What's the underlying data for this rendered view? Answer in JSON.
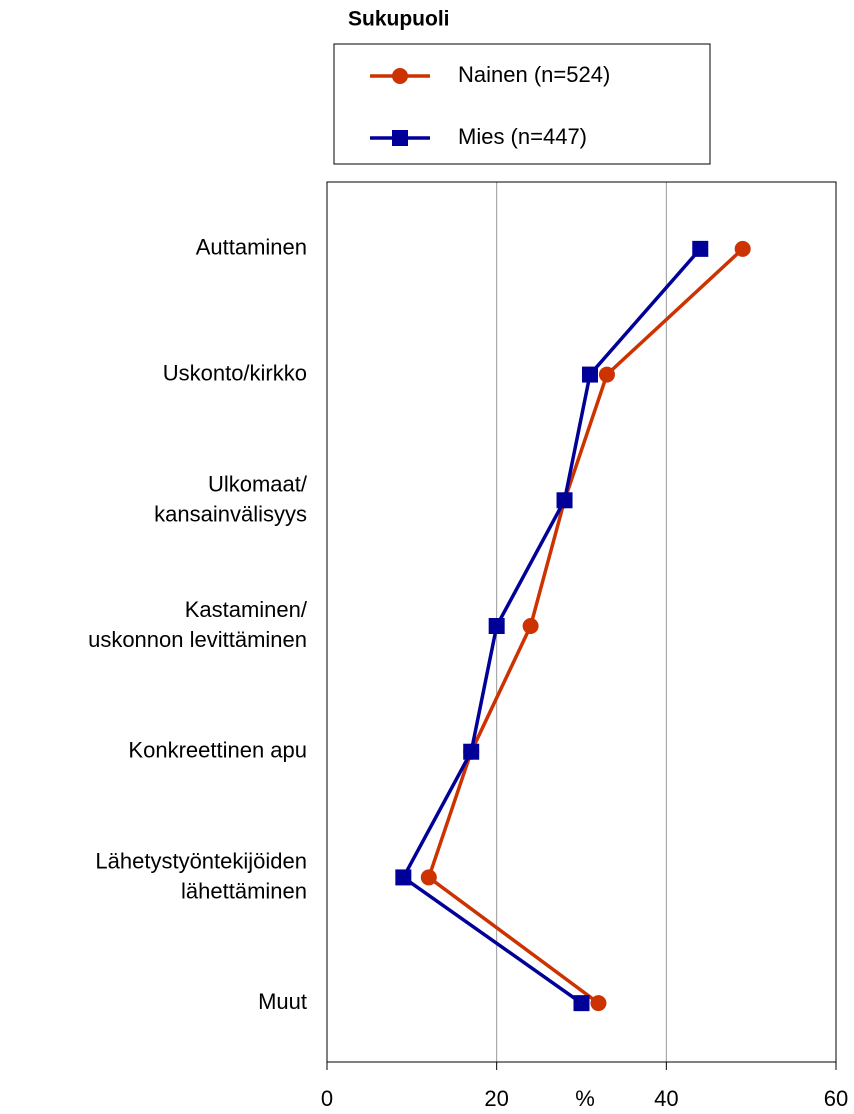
{
  "chart_data": {
    "type": "line",
    "legend_title": "Sukupuoli",
    "xlabel": "%",
    "categories": [
      "Auttaminen",
      "Uskonto/kirkko",
      "Ulkomaat/\nkansainvälisyys",
      "Kastaminen/\nuskonnon levittäminen",
      "Konkreettinen apu",
      "Lähetystyöntekijöiden\nlähettäminen",
      "Muut"
    ],
    "series": [
      {
        "name": "Nainen (n=524)",
        "color": "#cc3300",
        "marker": "circle",
        "values": [
          49,
          33,
          28,
          24,
          17,
          12,
          32
        ]
      },
      {
        "name": "Mies (n=447)",
        "color": "#000099",
        "marker": "square",
        "values": [
          44,
          31,
          28,
          20,
          17,
          9,
          30
        ]
      }
    ],
    "xlim": [
      0,
      60
    ],
    "xticks": [
      0,
      20,
      40,
      60
    ],
    "grid": true
  }
}
